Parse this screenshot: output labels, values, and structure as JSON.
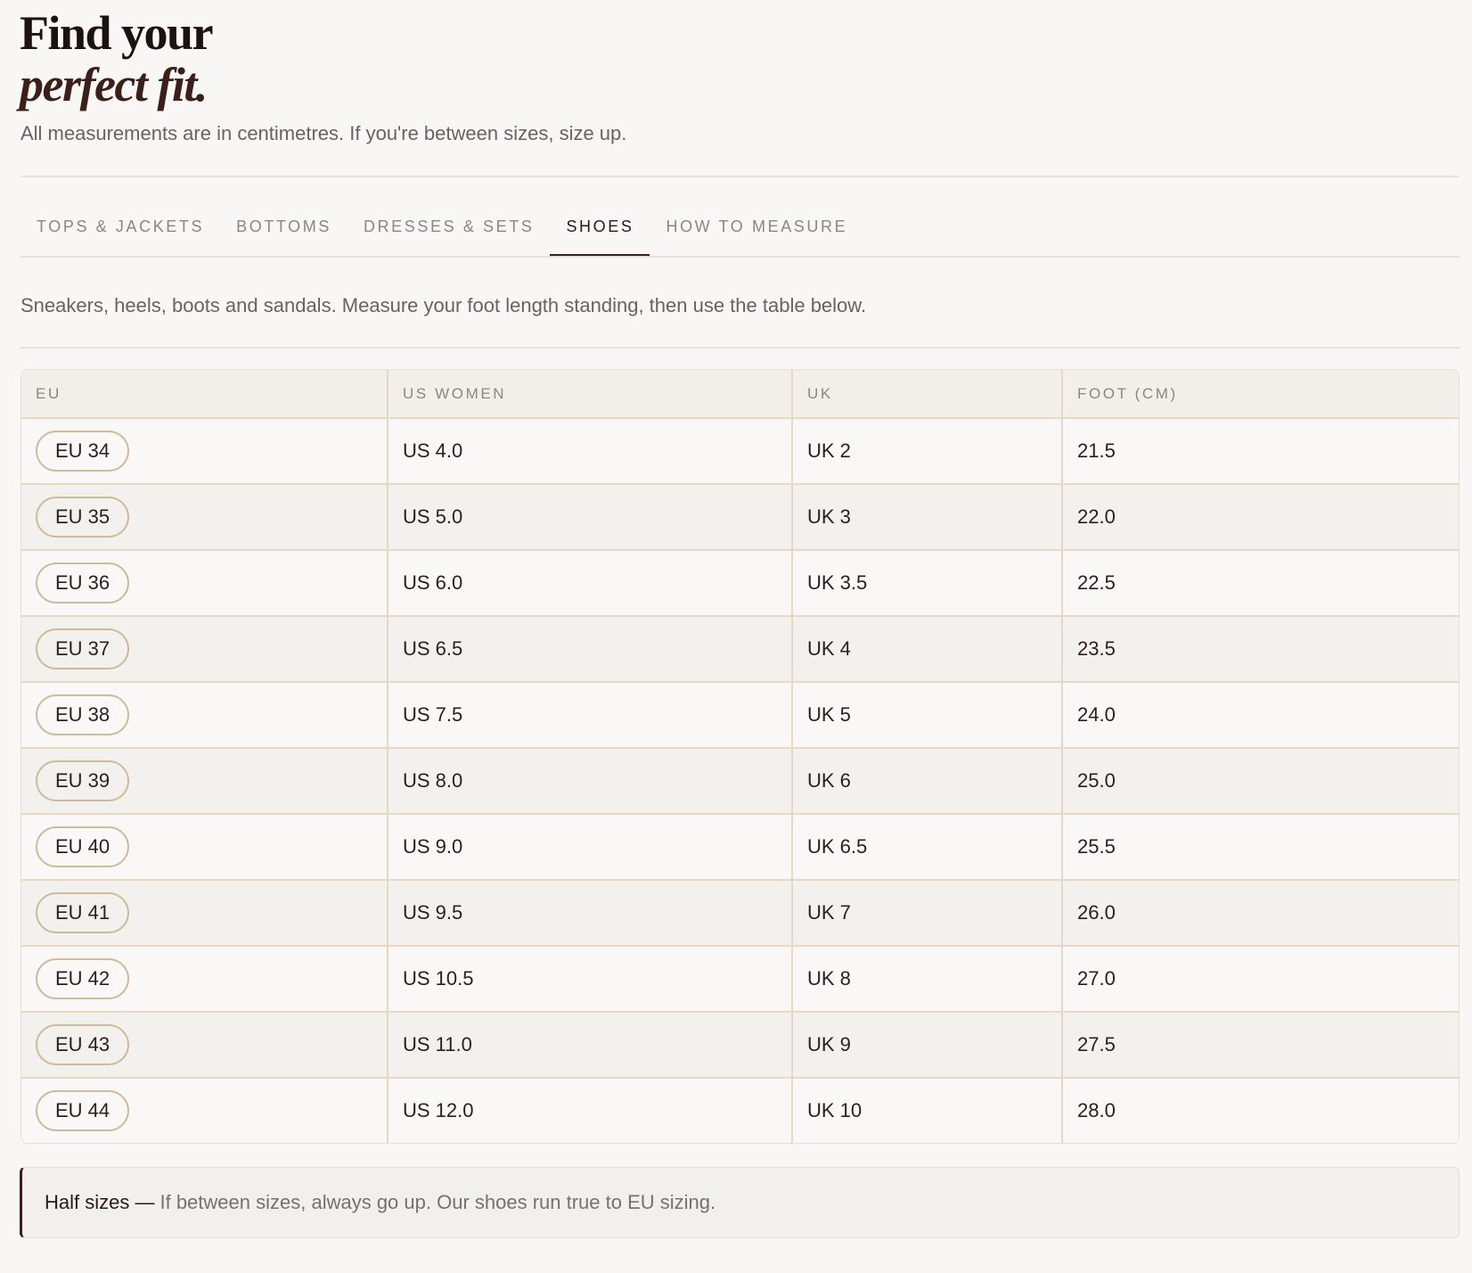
{
  "header": {
    "title_line1": "Find your",
    "title_line2": "perfect fit.",
    "subtitle": "All measurements are in centimetres. If you're between sizes, size up."
  },
  "tabs": [
    {
      "label": "TOPS & JACKETS",
      "active": false
    },
    {
      "label": "BOTTOMS",
      "active": false
    },
    {
      "label": "DRESSES & SETS",
      "active": false
    },
    {
      "label": "SHOES",
      "active": true
    },
    {
      "label": "HOW TO MEASURE",
      "active": false
    }
  ],
  "description": "Sneakers, heels, boots and sandals. Measure your foot length standing, then use the table below.",
  "table": {
    "columns": [
      "EU",
      "US WOMEN",
      "UK",
      "FOOT (CM)"
    ],
    "rows": [
      [
        "EU 34",
        "US 4.0",
        "UK 2",
        "21.5"
      ],
      [
        "EU 35",
        "US 5.0",
        "UK 3",
        "22.0"
      ],
      [
        "EU 36",
        "US 6.0",
        "UK 3.5",
        "22.5"
      ],
      [
        "EU 37",
        "US 6.5",
        "UK 4",
        "23.5"
      ],
      [
        "EU 38",
        "US 7.5",
        "UK 5",
        "24.0"
      ],
      [
        "EU 39",
        "US 8.0",
        "UK 6",
        "25.0"
      ],
      [
        "EU 40",
        "US 9.0",
        "UK 6.5",
        "25.5"
      ],
      [
        "EU 41",
        "US 9.5",
        "UK 7",
        "26.0"
      ],
      [
        "EU 42",
        "US 10.5",
        "UK 8",
        "27.0"
      ],
      [
        "EU 43",
        "US 11.0",
        "UK 9",
        "27.5"
      ],
      [
        "EU 44",
        "US 12.0",
        "UK 10",
        "28.0"
      ]
    ]
  },
  "note": {
    "label": "Half sizes —",
    "text": "If between sizes, always go up. Our shoes run true to EU sizing."
  },
  "colors": {
    "background": "#f9f7f5",
    "accent": "#3a1f1a",
    "pill_border": "#cdbb9d",
    "row_alt": "#f3f1ed"
  }
}
